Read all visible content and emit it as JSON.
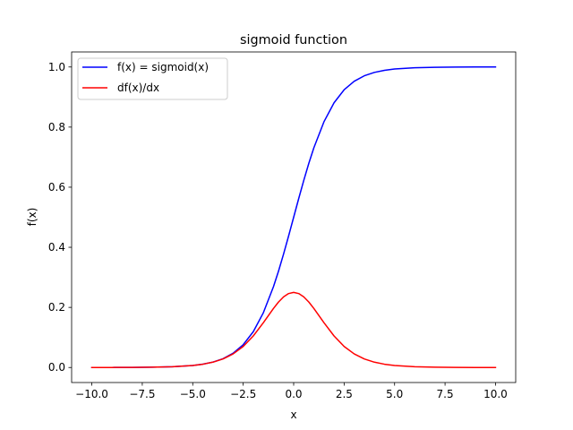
{
  "chart_data": {
    "type": "line",
    "title": "sigmoid function",
    "xlabel": "x",
    "ylabel": "f(x)",
    "xlim": [
      -11,
      11
    ],
    "ylim": [
      -0.05,
      1.05
    ],
    "grid": false,
    "legend_position": "top-left",
    "x_ticks": [
      -10,
      -7.5,
      -5,
      -2.5,
      0,
      2.5,
      5,
      7.5,
      10
    ],
    "x_tick_labels": [
      "−10.0",
      "−7.5",
      "−5.0",
      "−2.5",
      "0.0",
      "2.5",
      "5.0",
      "7.5",
      "10.0"
    ],
    "y_ticks": [
      0,
      0.2,
      0.4,
      0.6,
      0.8,
      1.0
    ],
    "y_tick_labels": [
      "0.0",
      "0.2",
      "0.4",
      "0.6",
      "0.8",
      "1.0"
    ],
    "x": [
      -10,
      -9,
      -8,
      -7,
      -6,
      -5,
      -4.5,
      -4,
      -3.5,
      -3,
      -2.5,
      -2,
      -1.5,
      -1,
      -0.75,
      -0.5,
      -0.25,
      0,
      0.25,
      0.5,
      0.75,
      1,
      1.5,
      2,
      2.5,
      3,
      3.5,
      4,
      4.5,
      5,
      6,
      7,
      8,
      9,
      10
    ],
    "series": [
      {
        "name": "f(x) = sigmoid(x)",
        "color": "#0000ff",
        "values": [
          4.54e-05,
          0.000123,
          0.000335,
          0.000911,
          0.00247,
          0.00669,
          0.011,
          0.018,
          0.0293,
          0.0474,
          0.0759,
          0.1192,
          0.1824,
          0.2689,
          0.3208,
          0.3775,
          0.4378,
          0.5,
          0.5622,
          0.6225,
          0.6792,
          0.7311,
          0.8176,
          0.8808,
          0.9241,
          0.9526,
          0.9707,
          0.982,
          0.989,
          0.9933,
          0.9975,
          0.9991,
          0.99966,
          0.99988,
          0.99995
        ]
      },
      {
        "name": "df(x)/dx",
        "color": "#ff0000",
        "values": [
          4.54e-05,
          0.000123,
          0.000335,
          0.00091,
          0.00247,
          0.00665,
          0.0109,
          0.0177,
          0.0285,
          0.0452,
          0.0701,
          0.105,
          0.1491,
          0.1966,
          0.2179,
          0.235,
          0.2461,
          0.25,
          0.2461,
          0.235,
          0.2179,
          0.1966,
          0.1491,
          0.105,
          0.0701,
          0.0452,
          0.0285,
          0.0177,
          0.0109,
          0.00665,
          0.00247,
          0.00091,
          0.000335,
          0.000123,
          4.54e-05
        ]
      }
    ]
  }
}
